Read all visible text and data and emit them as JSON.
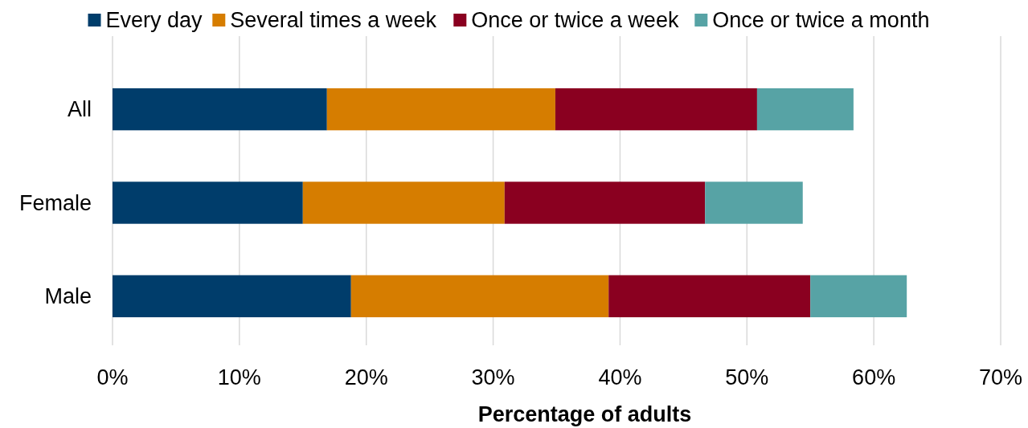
{
  "chart_data": {
    "type": "bar",
    "orientation": "horizontal",
    "stacked": true,
    "xlabel": "Percentage of adults",
    "categories": [
      "All",
      "Female",
      "Male"
    ],
    "series": [
      {
        "name": "Every day",
        "color": "#003d6b",
        "values": [
          16.9,
          15.0,
          18.8
        ]
      },
      {
        "name": "Several times a week",
        "color": "#d67d00",
        "values": [
          18.0,
          15.9,
          20.3
        ]
      },
      {
        "name": "Once or twice a week",
        "color": "#8a0020",
        "values": [
          15.9,
          15.8,
          15.9
        ]
      },
      {
        "name": "Once or twice a month",
        "color": "#57a3a5",
        "values": [
          7.6,
          7.7,
          7.6
        ]
      }
    ],
    "xlim": [
      0,
      70
    ],
    "xticks": [
      {
        "value": 0,
        "label": "0%"
      },
      {
        "value": 10,
        "label": "10%"
      },
      {
        "value": 20,
        "label": "20%"
      },
      {
        "value": 30,
        "label": "30%"
      },
      {
        "value": 40,
        "label": "40%"
      },
      {
        "value": 50,
        "label": "50%"
      },
      {
        "value": 60,
        "label": "60%"
      },
      {
        "value": 70,
        "label": "70%"
      }
    ],
    "grid": "x",
    "legend": "top"
  }
}
